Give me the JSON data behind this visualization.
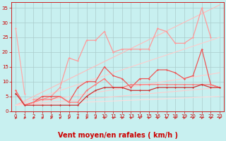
{
  "bg_color": "#c8f0f0",
  "grid_color": "#aacccc",
  "xlabel": "Vent moyen/en rafales ( km/h )",
  "xlabel_fontsize": 7,
  "xlabel_color": "#cc0000",
  "tick_color": "#cc0000",
  "tick_labelsize": 5,
  "ylim": [
    0,
    37
  ],
  "xlim": [
    -0.5,
    23.5
  ],
  "yticks": [
    0,
    5,
    10,
    15,
    20,
    25,
    30,
    35
  ],
  "xticks": [
    0,
    1,
    2,
    3,
    4,
    5,
    6,
    7,
    8,
    9,
    10,
    11,
    12,
    13,
    14,
    15,
    16,
    17,
    18,
    19,
    20,
    21,
    22,
    23
  ],
  "lines": [
    {
      "x": [
        0,
        23
      ],
      "y": [
        2,
        36
      ],
      "color": "#ffbbbb",
      "lw": 0.8,
      "marker": null,
      "ms": 0,
      "zorder": 2
    },
    {
      "x": [
        0,
        23
      ],
      "y": [
        2,
        25
      ],
      "color": "#ffcccc",
      "lw": 0.8,
      "marker": null,
      "ms": 0,
      "zorder": 2
    },
    {
      "x": [
        0,
        23
      ],
      "y": [
        2,
        13
      ],
      "color": "#ffcccc",
      "lw": 0.8,
      "marker": null,
      "ms": 0,
      "zorder": 2
    },
    {
      "x": [
        0,
        23
      ],
      "y": [
        2,
        8
      ],
      "color": "#ffcccc",
      "lw": 0.8,
      "marker": null,
      "ms": 0,
      "zorder": 2
    },
    {
      "x": [
        0,
        23
      ],
      "y": [
        2,
        5
      ],
      "color": "#ffdddd",
      "lw": 0.8,
      "marker": null,
      "ms": 0,
      "zorder": 2
    },
    {
      "x": [
        2,
        3,
        4,
        5,
        6,
        7,
        8,
        9,
        10,
        11,
        12,
        13,
        14,
        15,
        16,
        17,
        18,
        19,
        20,
        21,
        22
      ],
      "y": [
        4,
        4,
        5,
        8,
        18,
        17,
        24,
        24,
        27,
        20,
        21,
        21,
        21,
        21,
        28,
        27,
        23,
        23,
        25,
        35,
        25
      ],
      "color": "#ff9999",
      "lw": 0.9,
      "marker": "D",
      "ms": 1.5,
      "zorder": 3
    },
    {
      "x": [
        0,
        1,
        2,
        3,
        4,
        5,
        6,
        7,
        8,
        9,
        10,
        11,
        12,
        13,
        14,
        15,
        16,
        17,
        18,
        19,
        20,
        21,
        22,
        23
      ],
      "y": [
        7,
        2,
        3,
        5,
        5,
        5,
        3,
        8,
        10,
        10,
        15,
        12,
        11,
        8,
        11,
        11,
        14,
        14,
        13,
        11,
        12,
        21,
        9,
        8
      ],
      "color": "#ee5555",
      "lw": 0.9,
      "marker": "D",
      "ms": 1.5,
      "zorder": 4
    },
    {
      "x": [
        0,
        1,
        2,
        3,
        4,
        5,
        6,
        7,
        8,
        9,
        10,
        11,
        12,
        13,
        14,
        15,
        16,
        17,
        18,
        19,
        20,
        21,
        22,
        23
      ],
      "y": [
        7,
        2,
        3,
        4,
        4,
        5,
        3,
        3,
        7,
        9,
        11,
        8,
        8,
        9,
        9,
        9,
        9,
        9,
        9,
        9,
        9,
        9,
        9,
        8
      ],
      "color": "#ff7777",
      "lw": 0.9,
      "marker": "D",
      "ms": 1.5,
      "zorder": 4
    },
    {
      "x": [
        0,
        1,
        2,
        3,
        4,
        5,
        6,
        7,
        8,
        9,
        10,
        11,
        12,
        13,
        14,
        15,
        16,
        17,
        18,
        19,
        20,
        21,
        22,
        23
      ],
      "y": [
        6,
        2,
        2,
        2,
        2,
        2,
        2,
        2,
        5,
        7,
        8,
        8,
        8,
        7,
        7,
        7,
        8,
        8,
        8,
        8,
        8,
        9,
        8,
        8
      ],
      "color": "#cc3333",
      "lw": 0.9,
      "marker": "D",
      "ms": 1.5,
      "zorder": 5
    },
    {
      "x": [
        0,
        1
      ],
      "y": [
        28,
        6
      ],
      "color": "#ffaaaa",
      "lw": 0.9,
      "marker": "D",
      "ms": 1.5,
      "zorder": 6
    }
  ],
  "arrow_color": "#cc3333",
  "arrow_count": 24
}
